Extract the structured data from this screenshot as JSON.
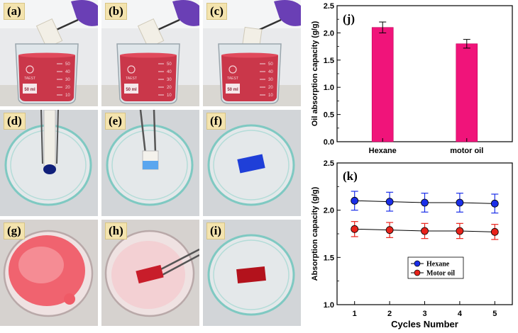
{
  "photos": [
    {
      "label": "(a)",
      "scene": "beaker",
      "beaker_text": "50 ml",
      "brand": "TAEST"
    },
    {
      "label": "(b)",
      "scene": "beaker",
      "beaker_text": "50 ml",
      "brand": "TAEST"
    },
    {
      "label": "(c)",
      "scene": "beaker",
      "beaker_text": "50 ml",
      "brand": "TAEST"
    },
    {
      "label": "(d)",
      "scene": "dish-blue-drop"
    },
    {
      "label": "(e)",
      "scene": "dish-blue-tweezer"
    },
    {
      "label": "(f)",
      "scene": "dish-blue-sponge"
    },
    {
      "label": "(g)",
      "scene": "bowl-red"
    },
    {
      "label": "(h)",
      "scene": "bowl-red-tweezer"
    },
    {
      "label": "(i)",
      "scene": "dish-red-sponge"
    }
  ],
  "beaker_scale": [
    "50",
    "40",
    "30",
    "20",
    "10"
  ],
  "colors": {
    "liquid_red": "#c8283c",
    "dye_blue": "#1f3fd8",
    "bar_magenta": "#f0147a",
    "hexane_blue": "#1a2ee8",
    "motor_red": "#e8221a"
  },
  "chart_data": [
    {
      "panel": "(j)",
      "type": "bar",
      "categories": [
        "Hexane",
        "motor oil"
      ],
      "values": [
        2.1,
        1.8
      ],
      "errors": [
        0.1,
        0.08
      ],
      "ylabel": "Oil absorption capacity  (g/g)",
      "xlabel": "",
      "ylim": [
        0.0,
        2.5
      ],
      "yticks": [
        "0.0",
        "0.5",
        "1.0",
        "1.5",
        "2.0",
        "2.5"
      ],
      "grid": false
    },
    {
      "panel": "(k)",
      "type": "line",
      "x": [
        1,
        2,
        3,
        4,
        5
      ],
      "xticks": [
        "1",
        "2",
        "3",
        "4",
        "5"
      ],
      "series": [
        {
          "name": "Hexane",
          "values": [
            2.1,
            2.09,
            2.08,
            2.08,
            2.07
          ],
          "errors": [
            0.1,
            0.1,
            0.1,
            0.1,
            0.1
          ]
        },
        {
          "name": "Motor oil",
          "values": [
            1.8,
            1.79,
            1.78,
            1.78,
            1.77
          ],
          "errors": [
            0.08,
            0.08,
            0.08,
            0.08,
            0.08
          ]
        }
      ],
      "xlabel": "Cycles Number",
      "ylabel": "Absorption capacity (g/g)",
      "ylim": [
        1.0,
        2.5
      ],
      "xlim": [
        0.5,
        5.5
      ],
      "yticks": [
        "1.0",
        "1.5",
        "2.0",
        "2.5"
      ],
      "legend_position": "lower-center",
      "grid": false
    }
  ]
}
